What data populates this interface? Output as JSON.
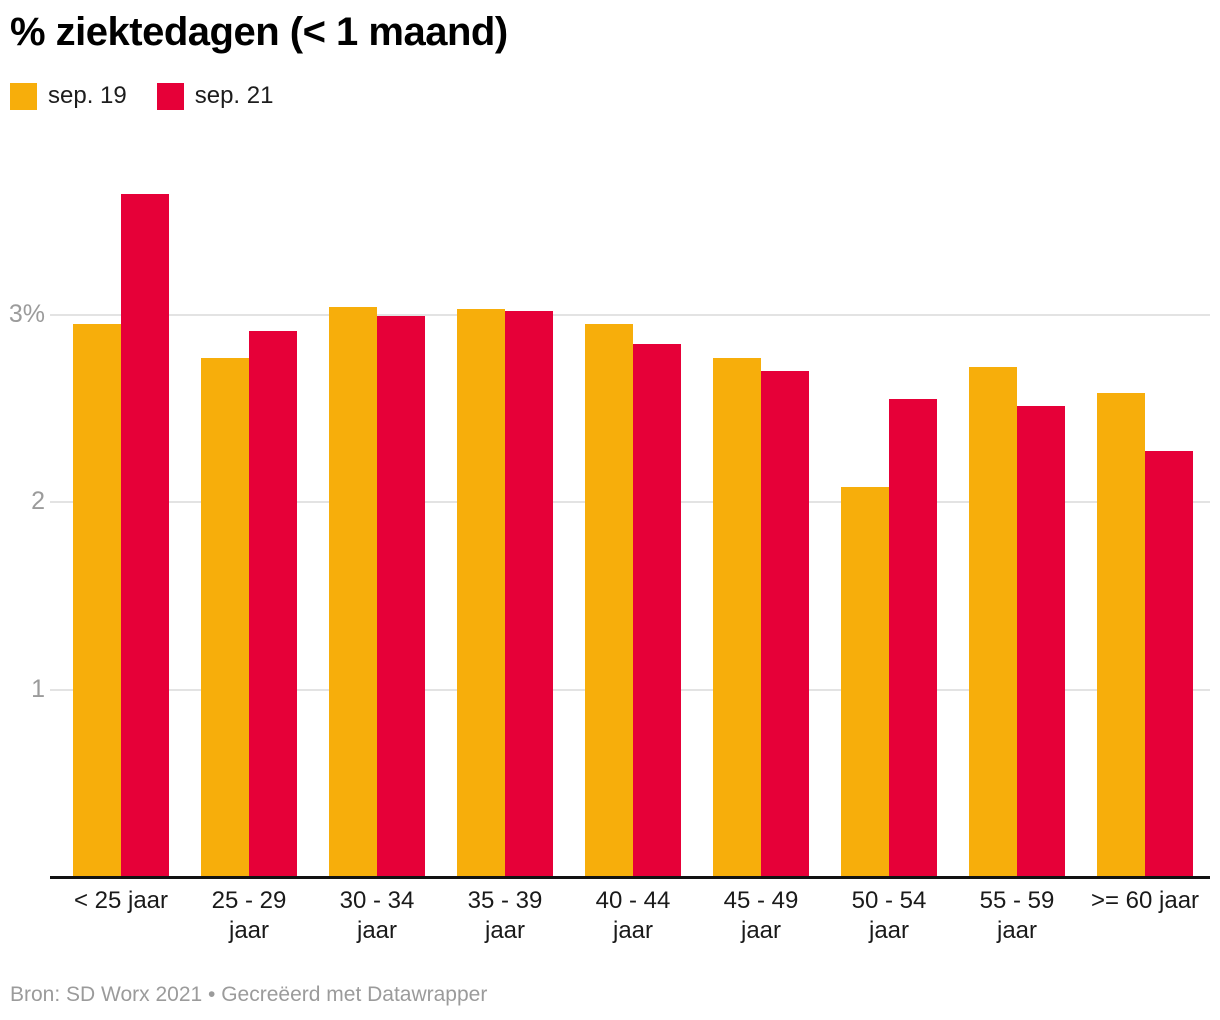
{
  "title": "% ziektedagen (< 1 maand)",
  "legend": {
    "items": [
      {
        "label": "sep. 19",
        "color": "#F7AE0B"
      },
      {
        "label": "sep. 21",
        "color": "#E60038"
      }
    ]
  },
  "footer": {
    "text": "Bron: SD Worx 2021 • Gecreëerd met Datawrapper"
  },
  "chart_data": {
    "type": "bar",
    "grouped": true,
    "title": "% ziektedagen (< 1 maand)",
    "source": "Bron: SD Worx 2021",
    "attribution": "Gecreëerd met Datawrapper",
    "categories": [
      "< 25 jaar",
      "25 - 29 jaar",
      "30 - 34 jaar",
      "35 - 39 jaar",
      "40 - 44 jaar",
      "45 - 49 jaar",
      "50 - 54 jaar",
      "55 - 59 jaar",
      ">= 60 jaar"
    ],
    "category_label_lines": [
      [
        "< 25 jaar"
      ],
      [
        "25 - 29",
        "jaar"
      ],
      [
        "30 - 34",
        "jaar"
      ],
      [
        "35 - 39",
        "jaar"
      ],
      [
        "40 - 44",
        "jaar"
      ],
      [
        "45 - 49",
        "jaar"
      ],
      [
        "50 - 54",
        "jaar"
      ],
      [
        "55 - 59",
        "jaar"
      ],
      [
        ">= 60 jaar"
      ]
    ],
    "series": [
      {
        "name": "sep. 19",
        "color": "#F7AE0B",
        "values": [
          2.95,
          2.77,
          3.04,
          3.03,
          2.95,
          2.77,
          2.08,
          2.72,
          2.58
        ]
      },
      {
        "name": "sep. 21",
        "color": "#E60038",
        "values": [
          3.64,
          2.91,
          2.99,
          3.02,
          2.84,
          2.7,
          2.55,
          2.51,
          2.27
        ]
      }
    ],
    "unit": "%",
    "yticks": [
      {
        "value": 1,
        "label": "1"
      },
      {
        "value": 2,
        "label": "2"
      },
      {
        "value": 3,
        "label": "3%"
      }
    ],
    "ylim": [
      0,
      3.8
    ],
    "grid": true,
    "legend_position": "top-left"
  }
}
